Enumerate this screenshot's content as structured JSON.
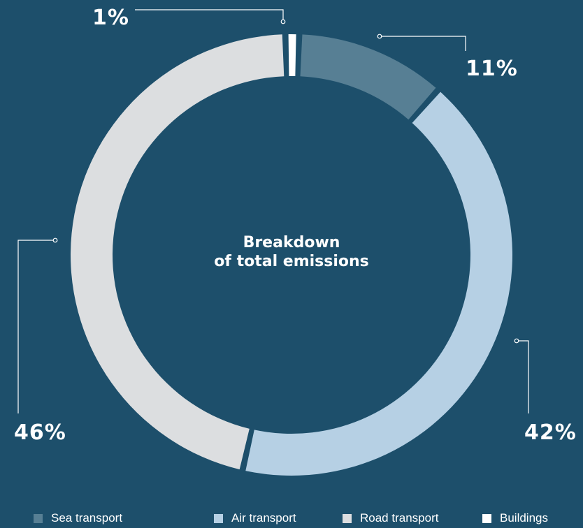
{
  "chart_data": {
    "type": "pie",
    "title": "Breakdown\nof total emissions",
    "categories": [
      "Sea transport",
      "Air transport",
      "Road transport",
      "Buildings"
    ],
    "values": [
      11,
      42,
      46,
      1
    ],
    "labels": [
      "11%",
      "42%",
      "46%",
      "1%"
    ],
    "colors": [
      "#577f94",
      "#b6d0e4",
      "#dcdee0",
      "#ffffff"
    ],
    "legend_position": "bottom"
  },
  "center_title_line1": "Breakdown",
  "center_title_line2": "of total emissions"
}
